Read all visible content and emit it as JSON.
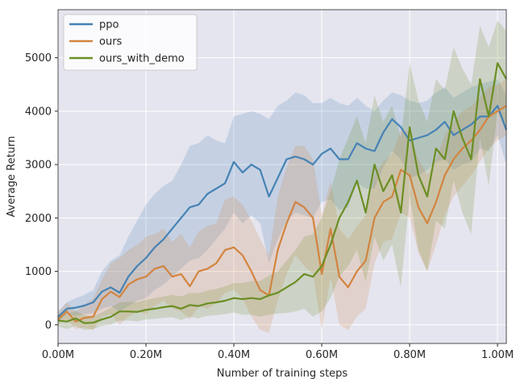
{
  "chart_data": {
    "type": "line",
    "title": "",
    "xlabel": "Number of training steps",
    "ylabel": "Average Return",
    "xlim": [
      0,
      1.02
    ],
    "ylim": [
      -350,
      5900
    ],
    "x_unit_suffix": "M",
    "x_ticks": [
      0.0,
      0.2,
      0.4,
      0.6,
      0.8,
      1.0
    ],
    "x_tick_labels": [
      "0.00M",
      "0.20M",
      "0.40M",
      "0.60M",
      "0.80M",
      "1.00M"
    ],
    "y_ticks": [
      0,
      1000,
      2000,
      3000,
      4000,
      5000
    ],
    "y_tick_labels": [
      "0",
      "1000",
      "2000",
      "3000",
      "4000",
      "5000"
    ],
    "grid": true,
    "legend_position": "top-left",
    "background_color": "#e5e5ef",
    "series": [
      {
        "name": "ppo",
        "color": "#4682b4",
        "x": [
          0.0,
          0.02,
          0.04,
          0.06,
          0.08,
          0.1,
          0.12,
          0.14,
          0.16,
          0.18,
          0.2,
          0.22,
          0.24,
          0.26,
          0.28,
          0.3,
          0.32,
          0.34,
          0.36,
          0.38,
          0.4,
          0.42,
          0.44,
          0.46,
          0.48,
          0.5,
          0.52,
          0.54,
          0.56,
          0.58,
          0.6,
          0.62,
          0.64,
          0.66,
          0.68,
          0.7,
          0.72,
          0.74,
          0.76,
          0.78,
          0.8,
          0.82,
          0.84,
          0.86,
          0.88,
          0.9,
          0.92,
          0.94,
          0.96,
          0.98,
          1.0,
          1.02
        ],
        "values": [
          150,
          300,
          320,
          360,
          420,
          620,
          700,
          600,
          900,
          1100,
          1250,
          1450,
          1600,
          1800,
          2000,
          2200,
          2250,
          2450,
          2550,
          2650,
          3050,
          2850,
          3000,
          2900,
          2400,
          2750,
          3100,
          3150,
          3100,
          3000,
          3200,
          3300,
          3100,
          3100,
          3400,
          3300,
          3250,
          3600,
          3850,
          3700,
          3450,
          3500,
          3550,
          3650,
          3800,
          3550,
          3650,
          3750,
          3900,
          3900,
          4100,
          3650
        ],
        "band_upper": [
          250,
          420,
          500,
          560,
          650,
          1000,
          1200,
          1300,
          1650,
          1950,
          2250,
          2450,
          2600,
          2700,
          3000,
          3350,
          3400,
          3550,
          3450,
          3400,
          3900,
          3950,
          4000,
          3950,
          3850,
          4100,
          4200,
          4350,
          4300,
          4150,
          4150,
          4250,
          4150,
          4100,
          4250,
          4100,
          4000,
          4200,
          4350,
          4300,
          4200,
          4150,
          4200,
          4350,
          4450,
          4250,
          4350,
          4450,
          4500,
          4550,
          4600,
          4300
        ],
        "band_lower": [
          60,
          200,
          170,
          200,
          220,
          300,
          350,
          250,
          350,
          450,
          500,
          650,
          750,
          900,
          1050,
          1200,
          1250,
          1400,
          1600,
          1800,
          2100,
          1900,
          2050,
          1900,
          1150,
          1600,
          1950,
          2100,
          2050,
          2000,
          2300,
          2350,
          2150,
          2200,
          2650,
          2550,
          2550,
          2950,
          3250,
          3100,
          2750,
          2800,
          2900,
          3050,
          3100,
          2900,
          3000,
          3050,
          3300,
          3250,
          3550,
          3000
        ]
      },
      {
        "name": "ours",
        "color": "#d2843f",
        "x": [
          0.0,
          0.02,
          0.04,
          0.06,
          0.08,
          0.1,
          0.12,
          0.14,
          0.16,
          0.18,
          0.2,
          0.22,
          0.24,
          0.26,
          0.28,
          0.3,
          0.32,
          0.34,
          0.36,
          0.38,
          0.4,
          0.42,
          0.44,
          0.46,
          0.48,
          0.5,
          0.52,
          0.54,
          0.56,
          0.58,
          0.6,
          0.62,
          0.64,
          0.66,
          0.68,
          0.7,
          0.72,
          0.74,
          0.76,
          0.78,
          0.8,
          0.82,
          0.84,
          0.86,
          0.88,
          0.9,
          0.92,
          0.94,
          0.96,
          0.98,
          1.0,
          1.02
        ],
        "values": [
          100,
          250,
          60,
          130,
          150,
          480,
          620,
          520,
          750,
          850,
          900,
          1050,
          1100,
          900,
          950,
          720,
          1000,
          1050,
          1150,
          1400,
          1450,
          1300,
          1000,
          650,
          550,
          1400,
          1900,
          2300,
          2200,
          2000,
          950,
          1800,
          900,
          700,
          1000,
          1200,
          2000,
          2300,
          2400,
          2900,
          2800,
          2200,
          1900,
          2300,
          2800,
          3100,
          3300,
          3450,
          3650,
          3900,
          4000,
          4100
        ],
        "band_upper": [
          220,
          420,
          250,
          380,
          500,
          850,
          1150,
          1250,
          1400,
          1500,
          1650,
          1700,
          1800,
          1550,
          1700,
          1450,
          1750,
          1850,
          1900,
          2350,
          2400,
          2250,
          1950,
          1600,
          1300,
          2400,
          2950,
          3350,
          3350,
          3100,
          2050,
          2700,
          1800,
          1600,
          1850,
          2050,
          2800,
          3050,
          3200,
          3650,
          3600,
          3100,
          2800,
          3100,
          3550,
          3800,
          4000,
          4100,
          4250,
          4450,
          4500,
          4600
        ],
        "band_lower": [
          20,
          100,
          -80,
          -50,
          -100,
          150,
          200,
          0,
          150,
          250,
          200,
          350,
          450,
          300,
          250,
          100,
          350,
          300,
          400,
          600,
          650,
          500,
          150,
          -100,
          -150,
          450,
          950,
          1300,
          1100,
          950,
          -100,
          900,
          0,
          -100,
          150,
          300,
          1150,
          1550,
          1600,
          2100,
          2000,
          1350,
          1000,
          1500,
          2050,
          2400,
          2600,
          2800,
          3050,
          3300,
          3450,
          3550
        ]
      },
      {
        "name": "ours_with_demo",
        "color": "#6b8e23",
        "x": [
          0.0,
          0.02,
          0.04,
          0.06,
          0.08,
          0.1,
          0.12,
          0.14,
          0.16,
          0.18,
          0.2,
          0.22,
          0.24,
          0.26,
          0.28,
          0.3,
          0.32,
          0.34,
          0.36,
          0.38,
          0.4,
          0.42,
          0.44,
          0.46,
          0.48,
          0.5,
          0.52,
          0.54,
          0.56,
          0.58,
          0.6,
          0.62,
          0.64,
          0.66,
          0.68,
          0.7,
          0.72,
          0.74,
          0.76,
          0.78,
          0.8,
          0.82,
          0.84,
          0.86,
          0.88,
          0.9,
          0.92,
          0.94,
          0.96,
          0.98,
          1.0,
          1.02
        ],
        "values": [
          80,
          60,
          120,
          30,
          40,
          100,
          150,
          250,
          250,
          240,
          280,
          300,
          330,
          350,
          300,
          370,
          350,
          400,
          420,
          450,
          500,
          480,
          500,
          480,
          550,
          600,
          700,
          800,
          950,
          900,
          1100,
          1500,
          2000,
          2300,
          2700,
          2100,
          3000,
          2500,
          2800,
          2100,
          3700,
          2800,
          2400,
          3300,
          3100,
          4000,
          3500,
          3100,
          4600,
          3900,
          4900,
          4600
        ],
        "band_upper": [
          180,
          200,
          260,
          180,
          160,
          230,
          320,
          420,
          430,
          420,
          470,
          500,
          530,
          560,
          530,
          600,
          590,
          640,
          670,
          720,
          780,
          780,
          820,
          820,
          920,
          1000,
          1200,
          1400,
          1650,
          1700,
          2000,
          2500,
          3100,
          3500,
          3900,
          3400,
          4300,
          3800,
          4100,
          3500,
          4900,
          4200,
          3800,
          4600,
          4400,
          5200,
          4800,
          4500,
          5600,
          5200,
          5700,
          5500
        ],
        "band_lower": [
          -30,
          -80,
          -20,
          -100,
          -80,
          -20,
          0,
          80,
          80,
          60,
          100,
          110,
          130,
          140,
          90,
          150,
          120,
          170,
          180,
          200,
          230,
          190,
          190,
          150,
          190,
          210,
          220,
          250,
          300,
          150,
          250,
          500,
          900,
          1100,
          1400,
          800,
          1650,
          1200,
          1500,
          700,
          2400,
          1400,
          1000,
          1950,
          1800,
          2700,
          2100,
          1700,
          3500,
          2600,
          4000,
          3600
        ]
      }
    ]
  }
}
